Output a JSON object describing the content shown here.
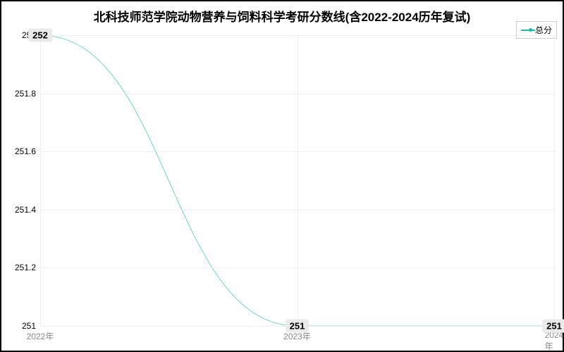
{
  "chart": {
    "type": "line",
    "title": "北科技师范学院动物营养与饲料科学考研分数线(含2022-2024历年复试)",
    "title_fontsize": 17,
    "title_color": "#000000",
    "title_fontweight": "bold",
    "background_color": "#ffffff",
    "border_color": "#000000",
    "grid_color": "#eeeeee",
    "legend": {
      "label": "总分",
      "color": "#1abc9c",
      "position": "top-right",
      "fontsize": 12
    },
    "x_categories": [
      "2022年",
      "2023年",
      "2024年"
    ],
    "y_ticks": [
      251,
      251.2,
      251.4,
      251.6,
      251.8,
      252
    ],
    "ylim": [
      251,
      252
    ],
    "xlim": [
      0,
      2
    ],
    "x_label_color": "#888888",
    "y_label_color": "#000000",
    "axis_fontsize": 12,
    "series": {
      "name": "总分",
      "color": "#1abc9c",
      "line_width": 2,
      "marker_style": "circle",
      "marker_size": 0,
      "curve": "smooth",
      "points": [
        {
          "x": 0,
          "y": 252,
          "label": "252"
        },
        {
          "x": 1,
          "y": 251,
          "label": "251"
        },
        {
          "x": 2,
          "y": 251,
          "label": "251"
        }
      ],
      "label_bg": "#eaeaea",
      "label_color": "#000000",
      "label_fontsize": 13,
      "label_fontweight": "bold"
    }
  }
}
